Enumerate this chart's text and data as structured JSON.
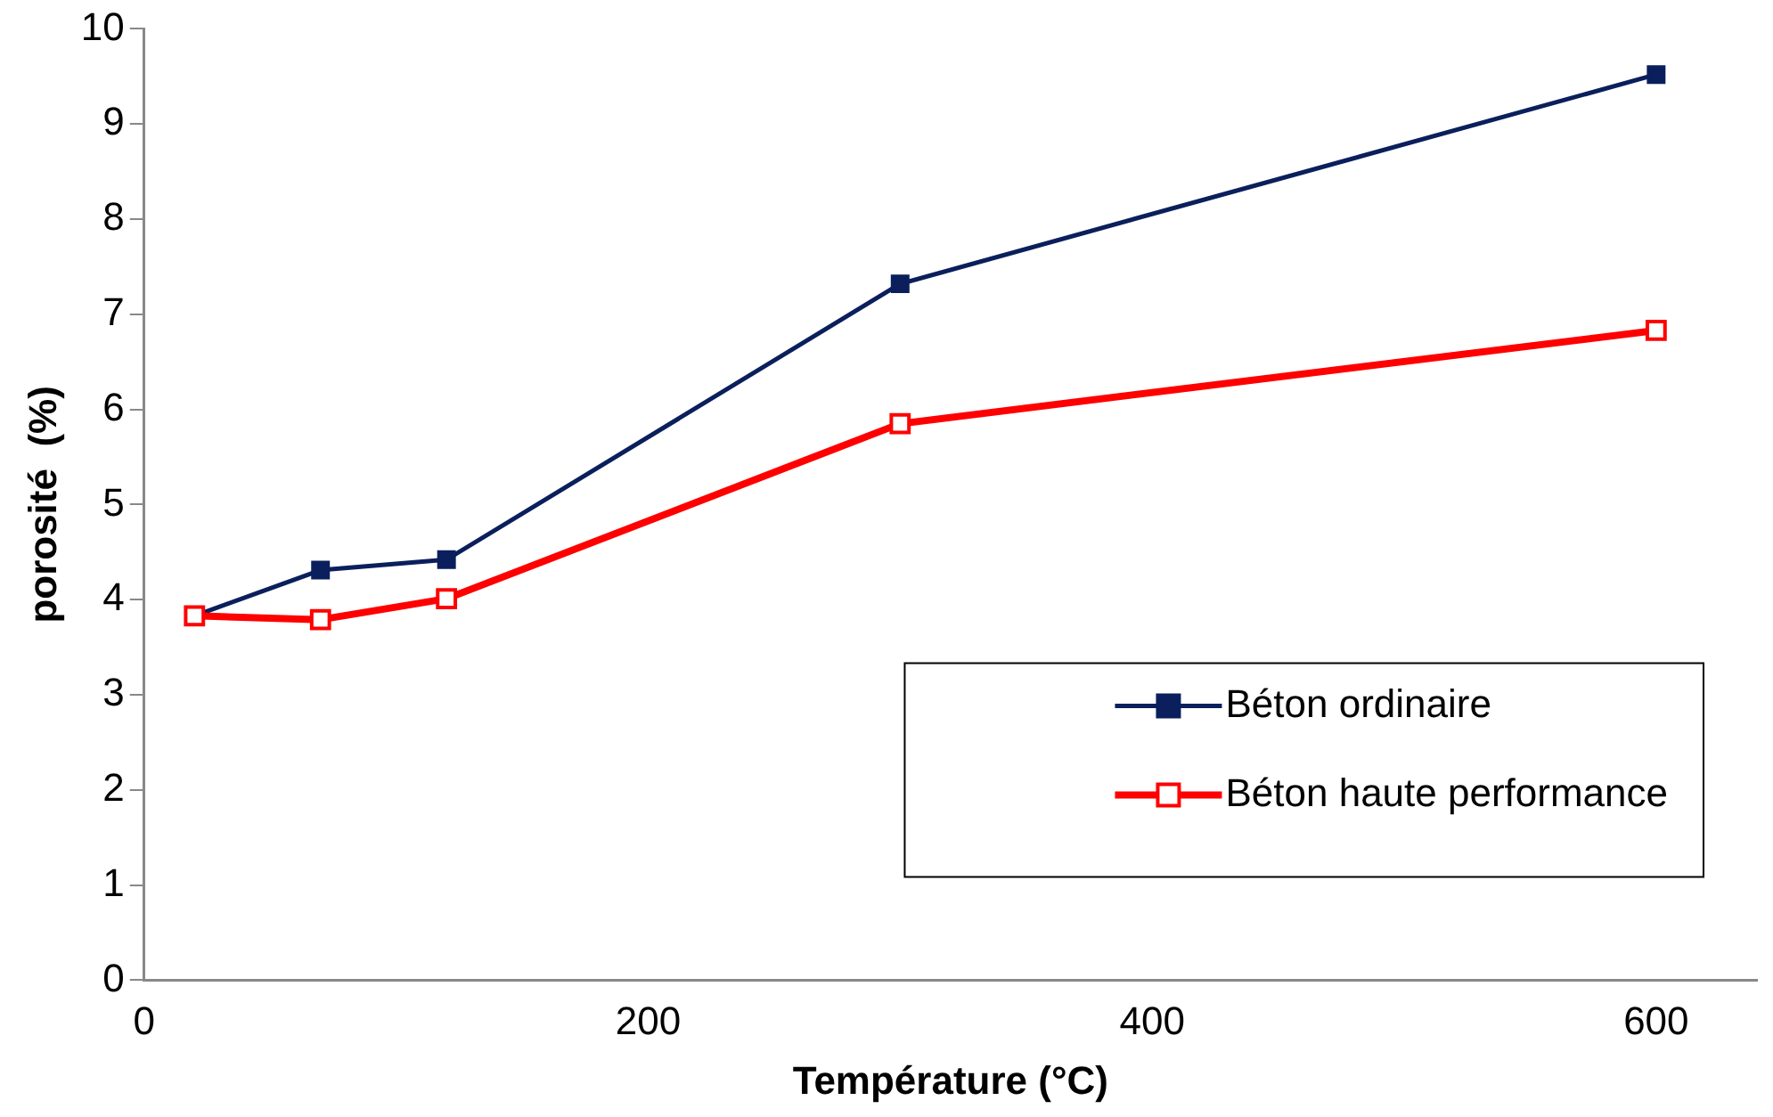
{
  "chart_data": {
    "type": "line",
    "xlabel": "Température (°C)",
    "ylabel": "porosité  (%)",
    "x": [
      20,
      70,
      120,
      300,
      600
    ],
    "series": [
      {
        "name": "Béton ordinaire",
        "color": "#0a1f5c",
        "values": [
          3.83,
          4.31,
          4.42,
          7.32,
          9.52
        ],
        "marker": "square"
      },
      {
        "name": "Béton haute performance",
        "color": "#ff0000",
        "values": [
          3.83,
          3.79,
          4.01,
          5.85,
          6.83
        ],
        "marker": "square"
      }
    ],
    "xlim": [
      0,
      640
    ],
    "xticks": [
      0,
      200,
      400,
      600
    ],
    "ylim": [
      0,
      10
    ],
    "yticks": [
      0,
      1,
      2,
      3,
      4,
      5,
      6,
      7,
      8,
      9,
      10
    ],
    "grid": false,
    "legend": "bottom right"
  }
}
